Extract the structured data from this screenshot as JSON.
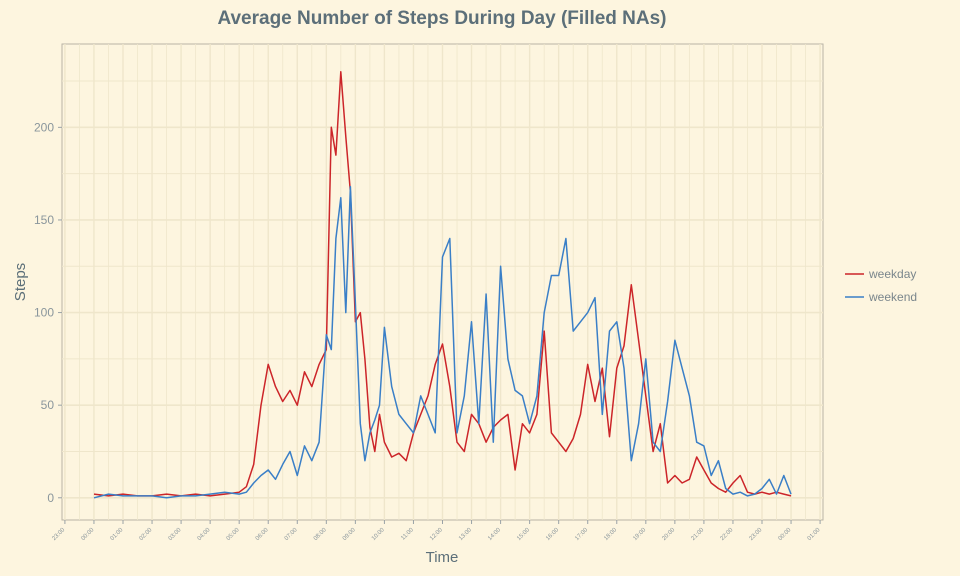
{
  "chart_data": {
    "type": "line",
    "title": "Average Number of Steps During Day (Filled NAs)",
    "xlabel": "Time",
    "ylabel": "Steps",
    "ylim": [
      -12,
      245
    ],
    "yticks": [
      0,
      50,
      100,
      150,
      200
    ],
    "xlim_hours": [
      -1.1,
      25.1
    ],
    "xtick_labels": [
      "23:00",
      "00:00",
      "01:00",
      "02:00",
      "03:00",
      "04:00",
      "05:00",
      "06:00",
      "07:00",
      "08:00",
      "09:00",
      "10:00",
      "11:00",
      "12:00",
      "13:00",
      "14:00",
      "15:00",
      "16:00",
      "17:00",
      "18:00",
      "19:00",
      "20:00",
      "21:00",
      "22:00",
      "23:00",
      "00:00",
      "01:00"
    ],
    "grid": true,
    "legend_position": "right",
    "series": [
      {
        "name": "weekday",
        "color": "#cc2529",
        "x_hours": [
          0,
          0.5,
          1,
          1.5,
          2,
          2.5,
          3,
          3.5,
          4,
          4.5,
          5,
          5.25,
          5.5,
          5.75,
          6,
          6.25,
          6.5,
          6.75,
          7,
          7.25,
          7.5,
          7.75,
          8,
          8.17,
          8.33,
          8.5,
          8.67,
          8.83,
          9,
          9.17,
          9.33,
          9.5,
          9.67,
          9.83,
          10,
          10.25,
          10.5,
          10.75,
          11,
          11.25,
          11.5,
          11.75,
          12,
          12.25,
          12.5,
          12.75,
          13,
          13.25,
          13.5,
          13.75,
          14,
          14.25,
          14.5,
          14.75,
          15,
          15.25,
          15.5,
          15.75,
          16,
          16.25,
          16.5,
          16.75,
          17,
          17.25,
          17.5,
          17.75,
          18,
          18.25,
          18.5,
          18.75,
          19,
          19.25,
          19.5,
          19.75,
          20,
          20.25,
          20.5,
          20.75,
          21,
          21.25,
          21.5,
          21.75,
          22,
          22.25,
          22.5,
          22.75,
          23,
          23.25,
          23.5,
          23.75,
          24
        ],
        "values": [
          2,
          1,
          2,
          1,
          1,
          2,
          1,
          2,
          1,
          2,
          3,
          6,
          18,
          50,
          72,
          60,
          52,
          58,
          50,
          68,
          60,
          72,
          80,
          200,
          185,
          230,
          195,
          165,
          95,
          100,
          75,
          38,
          25,
          45,
          30,
          22,
          24,
          20,
          35,
          45,
          55,
          72,
          83,
          60,
          30,
          25,
          45,
          40,
          30,
          38,
          42,
          45,
          15,
          40,
          35,
          45,
          90,
          35,
          30,
          25,
          32,
          45,
          72,
          52,
          70,
          33,
          70,
          82,
          115,
          85,
          55,
          25,
          40,
          8,
          12,
          8,
          10,
          22,
          15,
          8,
          5,
          3,
          8,
          12,
          3,
          2,
          3,
          2,
          3,
          2,
          1
        ]
      },
      {
        "name": "weekend",
        "color": "#3a7fc7",
        "x_hours": [
          0,
          0.5,
          1,
          1.5,
          2,
          2.5,
          3,
          3.5,
          4,
          4.5,
          5,
          5.25,
          5.5,
          5.75,
          6,
          6.25,
          6.5,
          6.75,
          7,
          7.25,
          7.5,
          7.75,
          8,
          8.17,
          8.33,
          8.5,
          8.67,
          8.83,
          9,
          9.17,
          9.33,
          9.5,
          9.67,
          9.83,
          10,
          10.25,
          10.5,
          10.75,
          11,
          11.25,
          11.5,
          11.75,
          12,
          12.25,
          12.5,
          12.75,
          13,
          13.25,
          13.5,
          13.75,
          14,
          14.25,
          14.5,
          14.75,
          15,
          15.25,
          15.5,
          15.75,
          16,
          16.25,
          16.5,
          16.75,
          17,
          17.25,
          17.5,
          17.75,
          18,
          18.25,
          18.5,
          18.75,
          19,
          19.25,
          19.5,
          19.75,
          20,
          20.25,
          20.5,
          20.75,
          21,
          21.25,
          21.5,
          21.75,
          22,
          22.25,
          22.5,
          22.75,
          23,
          23.25,
          23.5,
          23.75,
          24
        ],
        "values": [
          0,
          2,
          1,
          1,
          1,
          0,
          1,
          1,
          2,
          3,
          2,
          3,
          8,
          12,
          15,
          10,
          18,
          25,
          12,
          28,
          20,
          30,
          88,
          80,
          140,
          162,
          100,
          168,
          105,
          40,
          20,
          35,
          42,
          50,
          92,
          60,
          45,
          40,
          35,
          55,
          45,
          35,
          130,
          140,
          35,
          55,
          95,
          40,
          110,
          30,
          125,
          75,
          58,
          55,
          40,
          55,
          100,
          120,
          120,
          140,
          90,
          95,
          100,
          108,
          45,
          90,
          95,
          70,
          20,
          40,
          75,
          30,
          25,
          52,
          85,
          70,
          55,
          30,
          28,
          12,
          20,
          5,
          2,
          3,
          1,
          2,
          5,
          10,
          2,
          12,
          2
        ]
      }
    ]
  }
}
